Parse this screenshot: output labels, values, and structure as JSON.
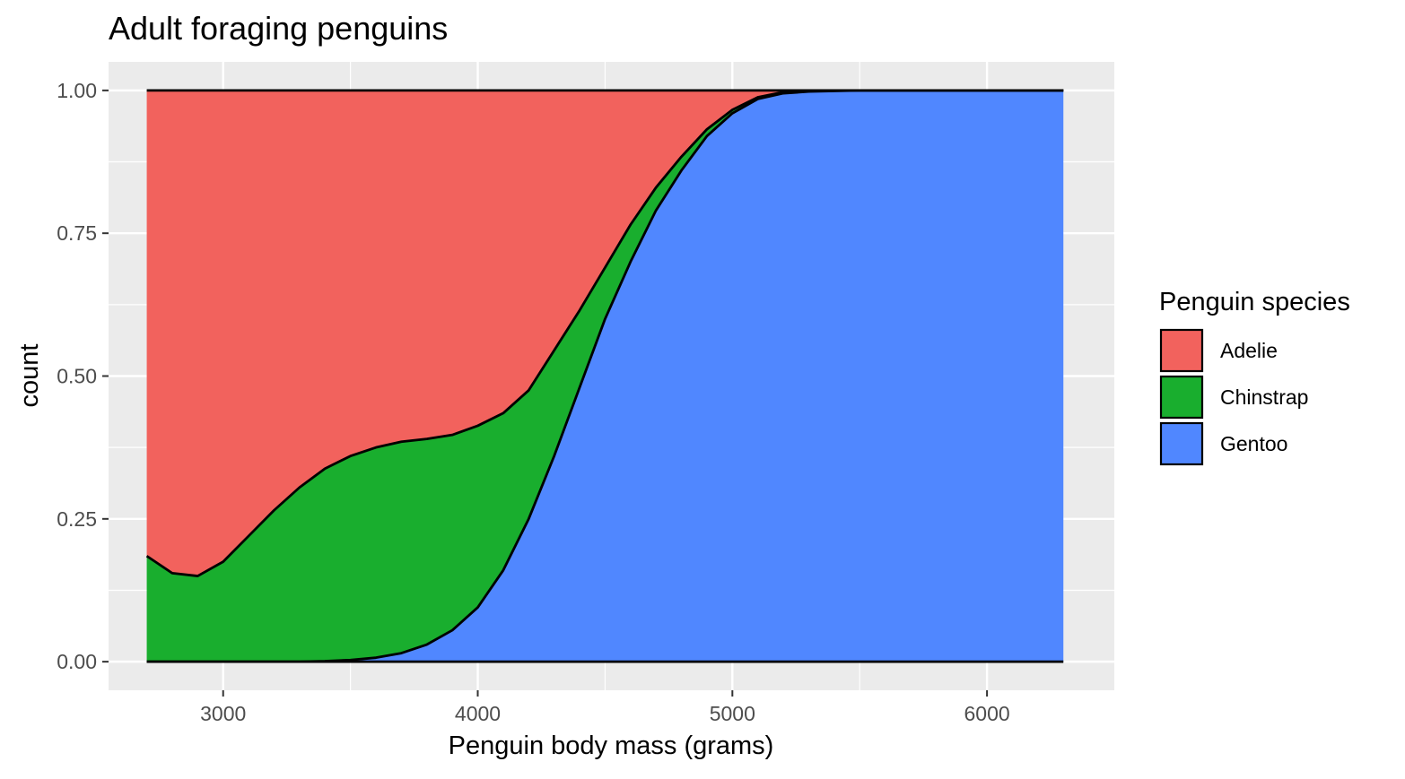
{
  "chart_data": {
    "type": "area",
    "stacking": "fill",
    "title": "Adult foraging penguins",
    "xlabel": "Penguin body mass (grams)",
    "ylabel": "count",
    "xlim": [
      2550,
      6500
    ],
    "ylim": [
      -0.05,
      1.05
    ],
    "x_ticks": [
      3000,
      4000,
      5000,
      6000
    ],
    "y_ticks": [
      0,
      0.25,
      0.5,
      0.75,
      1
    ],
    "y_tick_labels": [
      "0.00",
      "0.25",
      "0.50",
      "0.75",
      "1.00"
    ],
    "grid": true,
    "legend": {
      "title": "Penguin species",
      "position": "right"
    },
    "x": [
      2700,
      2800,
      2900,
      3000,
      3100,
      3200,
      3300,
      3400,
      3500,
      3600,
      3700,
      3800,
      3900,
      4000,
      4100,
      4200,
      4300,
      4400,
      4500,
      4600,
      4700,
      4800,
      4900,
      5000,
      5100,
      5200,
      5300,
      5400,
      5500,
      5600,
      5700,
      5800,
      5900,
      6000,
      6100,
      6200,
      6300
    ],
    "series": [
      {
        "name": "Gentoo",
        "color": "#5087FF",
        "values": [
          0,
          0,
          0,
          0,
          0,
          0,
          0,
          0.001,
          0.003,
          0.007,
          0.015,
          0.03,
          0.055,
          0.095,
          0.16,
          0.25,
          0.36,
          0.48,
          0.6,
          0.7,
          0.79,
          0.86,
          0.92,
          0.96,
          0.985,
          0.995,
          0.998,
          0.999,
          1,
          1,
          1,
          1,
          1,
          1,
          1,
          1,
          1
        ]
      },
      {
        "name": "Chinstrap",
        "color": "#19AE2E",
        "values": [
          0.185,
          0.155,
          0.15,
          0.175,
          0.22,
          0.265,
          0.305,
          0.337,
          0.357,
          0.368,
          0.37,
          0.36,
          0.342,
          0.318,
          0.275,
          0.225,
          0.185,
          0.135,
          0.09,
          0.065,
          0.04,
          0.024,
          0.012,
          0.006,
          0.003,
          0.002,
          0.001,
          0.001,
          0,
          0,
          0,
          0,
          0,
          0,
          0,
          0,
          0
        ]
      },
      {
        "name": "Adelie",
        "color": "#F2625D",
        "values": [
          0.815,
          0.845,
          0.85,
          0.825,
          0.78,
          0.735,
          0.695,
          0.662,
          0.64,
          0.625,
          0.615,
          0.61,
          0.603,
          0.587,
          0.565,
          0.525,
          0.455,
          0.385,
          0.31,
          0.235,
          0.17,
          0.116,
          0.068,
          0.034,
          0.012,
          0.003,
          0.001,
          0,
          0,
          0,
          0,
          0,
          0,
          0,
          0,
          0,
          0
        ]
      }
    ]
  }
}
